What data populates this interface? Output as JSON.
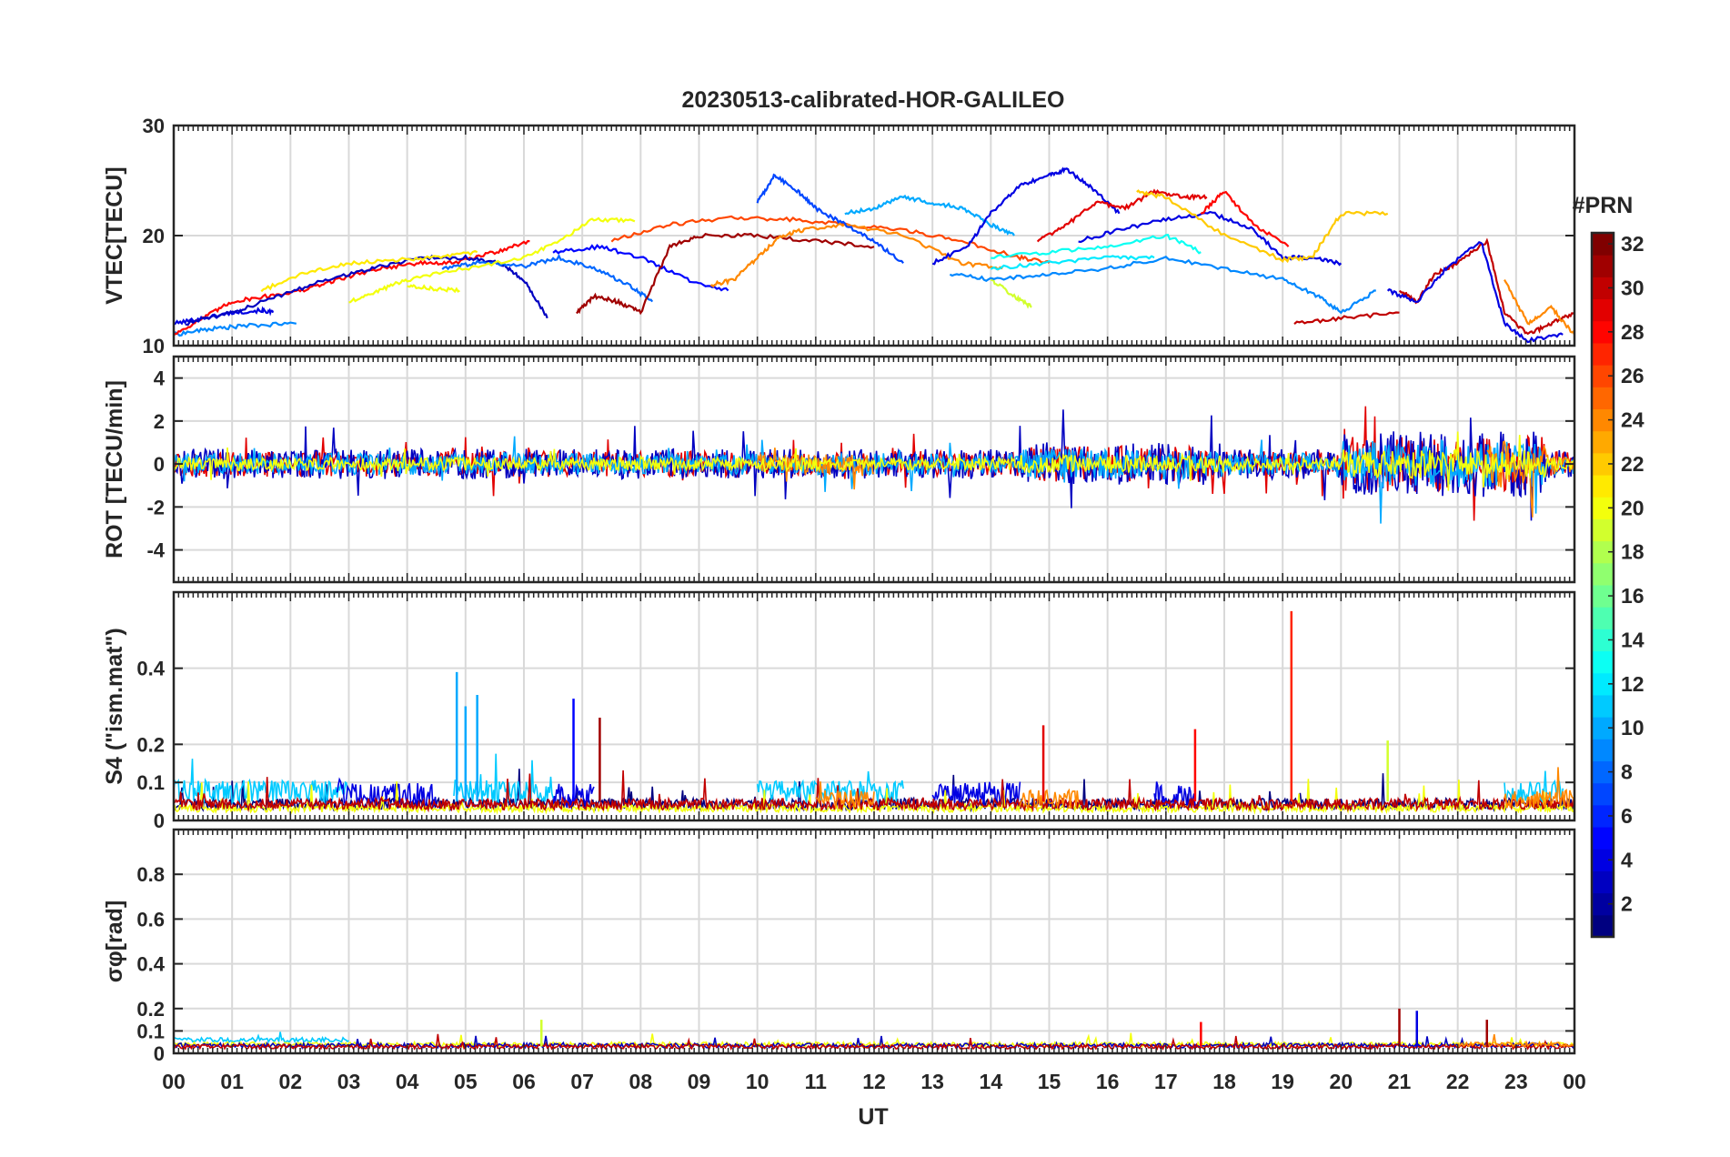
{
  "chart_data": {
    "title": "20230513-calibrated-HOR-GALILEO",
    "type": "line",
    "xlabel": "UT",
    "x_ticks": [
      "00",
      "01",
      "02",
      "03",
      "04",
      "05",
      "06",
      "07",
      "08",
      "09",
      "10",
      "11",
      "12",
      "13",
      "14",
      "15",
      "16",
      "17",
      "18",
      "19",
      "20",
      "21",
      "22",
      "23",
      "00"
    ],
    "xlim": [
      0,
      24
    ],
    "grid": true,
    "panels": [
      {
        "id": "vtec",
        "ylabel": "VTEC[TECU]",
        "ylim": [
          10,
          30
        ],
        "yticks": [
          10,
          20,
          30
        ],
        "series": [
          {
            "prn": 4,
            "x": [
              0,
              0.5,
              1,
              1.5,
              1.7
            ],
            "y": [
              12,
              12.5,
              13,
              13.2,
              13
            ]
          },
          {
            "prn": 9,
            "x": [
              0,
              0.6,
              1.2,
              2.1
            ],
            "y": [
              11,
              11.5,
              11.8,
              12
            ]
          },
          {
            "prn": 28,
            "x": [
              0,
              0.5,
              1,
              1.6,
              2.2,
              2.8,
              3.5,
              4.2,
              4.8,
              5.5,
              6.1
            ],
            "y": [
              11,
              12.5,
              14,
              14.5,
              15,
              16,
              17,
              17.5,
              17.5,
              18.5,
              19.5
            ]
          },
          {
            "prn": 3,
            "x": [
              0.2,
              1,
              1.8,
              2.6,
              3.4,
              4.2,
              5,
              5.6,
              6,
              6.4
            ],
            "y": [
              12,
              13,
              14.5,
              16,
              17,
              18,
              18,
              17.5,
              16,
              12.5
            ]
          },
          {
            "prn": 21,
            "x": [
              1.5,
              2.2,
              3,
              3.8,
              4.5,
              5.2
            ],
            "y": [
              15,
              16.5,
              17.5,
              17.8,
              18,
              18.5
            ]
          },
          {
            "prn": 20,
            "x": [
              4,
              4.4,
              4.9
            ],
            "y": [
              15.5,
              15.2,
              15
            ]
          },
          {
            "prn": 8,
            "x": [
              4.6,
              5.2,
              6,
              6.6,
              7.2,
              7.8,
              8.2
            ],
            "y": [
              17,
              17.5,
              17.2,
              18,
              17,
              15.5,
              14
            ]
          },
          {
            "prn": 20,
            "x": [
              3,
              3.5,
              4,
              5,
              6,
              6.6,
              7.2,
              7.9
            ],
            "y": [
              14,
              15,
              16,
              17,
              18,
              19.5,
              21.5,
              21.3
            ]
          },
          {
            "prn": 5,
            "x": [
              6.5,
              7.3,
              8,
              8.8,
              9.5
            ],
            "y": [
              18.5,
              19,
              18,
              16,
              15
            ]
          },
          {
            "prn": 31,
            "x": [
              6.9,
              7.2,
              7.6,
              8,
              8.5,
              9,
              10,
              11,
              12
            ],
            "y": [
              13,
              14.5,
              14,
              13,
              19,
              20,
              20,
              19.5,
              19
            ]
          },
          {
            "prn": 26,
            "x": [
              7.5,
              8.5,
              9.5,
              10.5,
              11.5,
              12.5,
              13.5,
              14.5,
              15
            ],
            "y": [
              19.5,
              21,
              21.6,
              21.5,
              21,
              20.5,
              19.5,
              18,
              17.5
            ]
          },
          {
            "prn": 24,
            "x": [
              9.2,
              9.6,
              10,
              10.4,
              10.8,
              11.5,
              12.5,
              13.5,
              14.2
            ],
            "y": [
              15.5,
              16,
              18,
              20,
              20.5,
              21,
              20,
              17.5,
              17
            ]
          },
          {
            "prn": 7,
            "x": [
              10,
              10.3,
              10.7,
              11,
              11.5,
              12,
              12.5
            ],
            "y": [
              23,
              25.5,
              24,
              22.5,
              21,
              19.5,
              17.5
            ]
          },
          {
            "prn": 10,
            "x": [
              11.5,
              12,
              12.5,
              13,
              13.5,
              14,
              14.4
            ],
            "y": [
              22,
              22.5,
              23.5,
              23,
              22.5,
              21,
              20
            ]
          },
          {
            "prn": 4,
            "x": [
              13,
              13.6,
              14,
              14.5,
              15,
              15.3,
              15.7,
              16.2
            ],
            "y": [
              17.5,
              19,
              22,
              24.5,
              25.5,
              26,
              24.5,
              22
            ]
          },
          {
            "prn": 29,
            "x": [
              14.8,
              15.3,
              15.8,
              16.3,
              16.8,
              17.3,
              17.7
            ],
            "y": [
              19.5,
              21,
              23,
              22.5,
              24,
              23.5,
              23.5
            ]
          },
          {
            "prn": 4,
            "x": [
              15.5,
              16.2,
              17,
              17.8,
              18.5,
              19,
              19.5,
              20
            ],
            "y": [
              19.5,
              20.5,
              21.5,
              22,
              20.5,
              18,
              18,
              17.5
            ]
          },
          {
            "prn": 19,
            "x": [
              14,
              14.4,
              14.7
            ],
            "y": [
              16,
              14.5,
              13.5
            ]
          },
          {
            "prn": 9,
            "x": [
              13.3,
              14,
              15,
              16,
              17,
              18,
              19,
              19.6,
              20,
              20.6
            ],
            "y": [
              16.5,
              16,
              16.5,
              17,
              18,
              17,
              16,
              14.5,
              13,
              15
            ]
          },
          {
            "prn": 12,
            "x": [
              14,
              15,
              16,
              16.8
            ],
            "y": [
              17,
              17.5,
              18,
              18
            ]
          },
          {
            "prn": 13,
            "x": [
              14,
              15,
              16,
              17,
              17.6
            ],
            "y": [
              18,
              18.5,
              19,
              20,
              18.5
            ]
          },
          {
            "prn": 22,
            "x": [
              16.5,
              17,
              18,
              19,
              19.5,
              20,
              20.8
            ],
            "y": [
              24,
              23.5,
              20,
              17.8,
              18,
              22,
              22
            ]
          },
          {
            "prn": 28,
            "x": [
              17.6,
              18,
              18.5,
              19.1
            ],
            "y": [
              22,
              24,
              21,
              19
            ]
          },
          {
            "prn": 30,
            "x": [
              19.2,
              20,
              21
            ],
            "y": [
              12,
              12.5,
              13
            ]
          },
          {
            "prn": 30,
            "x": [
              21,
              21.3,
              21.6,
              22,
              22.5,
              22.8,
              23.2,
              23.6,
              24
            ],
            "y": [
              15,
              14,
              16.5,
              17.5,
              19.5,
              13,
              11,
              12,
              13
            ]
          },
          {
            "prn": 4,
            "x": [
              20.8,
              21.3,
              21.8,
              22.4,
              22.8,
              23.2,
              23.8
            ],
            "y": [
              15,
              14,
              17,
              19.5,
              12,
              10.5,
              11
            ]
          },
          {
            "prn": 24,
            "x": [
              22.8,
              23.2,
              23.6,
              24
            ],
            "y": [
              16,
              12,
              13.5,
              11
            ]
          }
        ]
      },
      {
        "id": "rot",
        "ylabel": "ROT [TECU/min]",
        "ylim": [
          -5.5,
          5
        ],
        "yticks": [
          -4,
          -2,
          0,
          2,
          4
        ],
        "series_noise": [
          {
            "prn": 29,
            "amp": 0.6,
            "segments": [
              [
                0,
                24
              ]
            ]
          },
          {
            "prn": 3,
            "amp": 0.7,
            "segments": [
              [
                0,
                24
              ]
            ]
          },
          {
            "prn": 10,
            "amp": 0.5,
            "segments": [
              [
                0,
                24
              ]
            ]
          },
          {
            "prn": 24,
            "amp": 0.5,
            "segments": [
              [
                10,
                12
              ],
              [
                22.5,
                24
              ]
            ]
          },
          {
            "prn": 20,
            "amp": 0.3,
            "segments": [
              [
                0,
                24
              ]
            ]
          }
        ]
      },
      {
        "id": "s4",
        "ylabel": "S4 (\"ism.mat\")",
        "ylim": [
          0,
          0.6
        ],
        "yticks": [
          0,
          0.1,
          0.2,
          0.4
        ],
        "ytick_labels": [
          "0",
          "0.1",
          "0.2",
          "0.4"
        ]
      },
      {
        "id": "sigma",
        "ylabel": "σφ[rad]",
        "ylim": [
          0,
          1
        ],
        "yticks": [
          0,
          0.1,
          0.2,
          0.4,
          0.6,
          0.8
        ],
        "ytick_labels": [
          "0",
          "0.1",
          "0.2",
          "0.4",
          "0.6",
          "0.8"
        ]
      }
    ],
    "colorbar": {
      "label": "#PRN",
      "min": 1,
      "max": 32,
      "ticks": [
        2,
        4,
        6,
        8,
        10,
        12,
        14,
        16,
        18,
        20,
        22,
        24,
        26,
        28,
        30,
        32
      ],
      "colormap": "jet"
    }
  }
}
